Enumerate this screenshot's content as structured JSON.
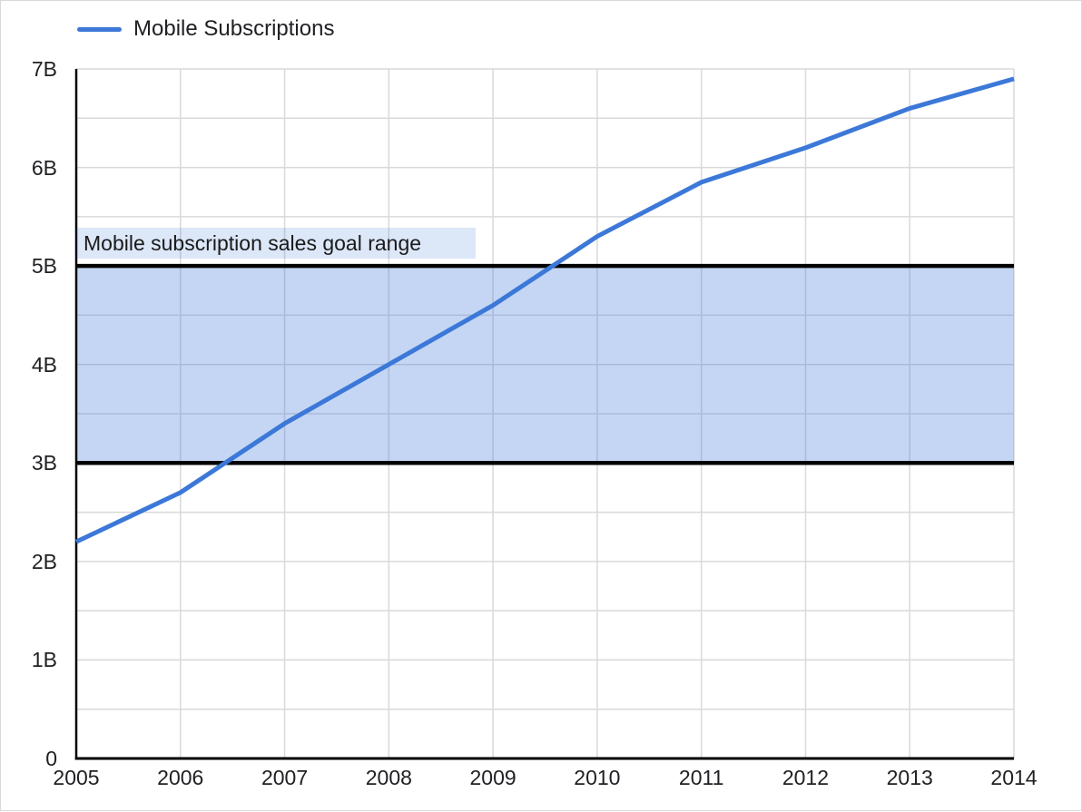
{
  "page": {
    "background": "#ffffff",
    "border_color": "#d9d9d9"
  },
  "legend": {
    "position": "top-left",
    "items": [
      {
        "label": "Mobile Subscriptions",
        "swatch": "line",
        "color": "#3c78d8"
      }
    ]
  },
  "chart_data": {
    "type": "line",
    "title": "",
    "xlabel": "",
    "ylabel": "",
    "x": [
      2005,
      2006,
      2007,
      2008,
      2009,
      2010,
      2011,
      2012,
      2013,
      2014
    ],
    "xtick_labels": [
      "2005",
      "2006",
      "2007",
      "2008",
      "2009",
      "2010",
      "2011",
      "2012",
      "2013",
      "2014"
    ],
    "series": [
      {
        "name": "Mobile Subscriptions",
        "color": "#3c78d8",
        "line_width": 5,
        "values": [
          2.2,
          2.7,
          3.4,
          4.0,
          4.6,
          5.3,
          5.85,
          6.2,
          6.6,
          6.9
        ]
      }
    ],
    "ylim": [
      0,
      7
    ],
    "yticks": [
      {
        "v": 0,
        "label": "0"
      },
      {
        "v": 1,
        "label": "1B"
      },
      {
        "v": 2,
        "label": "2B"
      },
      {
        "v": 3,
        "label": "3B"
      },
      {
        "v": 4,
        "label": "4B"
      },
      {
        "v": 5,
        "label": "5B"
      },
      {
        "v": 6,
        "label": "6B"
      },
      {
        "v": 7,
        "label": "7B"
      }
    ],
    "minor_grid_step": 0.5,
    "grid": true,
    "annotation_band": {
      "label": "Mobile subscription sales goal range",
      "y_from": 3,
      "y_to": 5,
      "fill": "rgba(60,120,216,0.30)",
      "border_color": "#000000",
      "border_width": 4.5,
      "label_bg": "rgba(60,120,216,0.18)"
    },
    "colors": {
      "grid": "#d9d9d9",
      "axis": "#000000",
      "text": "#202124"
    },
    "legend_position": "top-left"
  }
}
